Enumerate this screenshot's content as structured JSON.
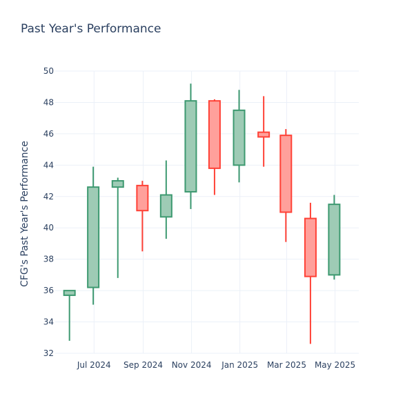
{
  "chart_data": {
    "type": "candlestick",
    "title": "Past Year's Performance",
    "xlabel": "",
    "ylabel": "CFG's Past Year's Performance",
    "ylim": [
      32,
      50
    ],
    "yticks": [
      32,
      34,
      36,
      38,
      40,
      42,
      44,
      46,
      48,
      50
    ],
    "xrange": [
      "2024-05-13",
      "2025-05-31"
    ],
    "xticks": [
      {
        "date": "2024-07-01",
        "label": "Jul 2024"
      },
      {
        "date": "2024-09-01",
        "label": "Sep 2024"
      },
      {
        "date": "2024-11-01",
        "label": "Nov 2024"
      },
      {
        "date": "2025-01-01",
        "label": "Jan 2025"
      },
      {
        "date": "2025-03-01",
        "label": "Mar 2025"
      },
      {
        "date": "2025-05-01",
        "label": "May 2025"
      }
    ],
    "grid": true,
    "increasing_color": "#3d9970",
    "increasing_fill": "#9ecbb5",
    "decreasing_color": "#ff4136",
    "decreasing_fill": "#ffa09b",
    "candles": [
      {
        "date": "2024-05-31",
        "open": 35.7,
        "high": 36.0,
        "low": 32.8,
        "close": 36.0
      },
      {
        "date": "2024-06-30",
        "open": 36.2,
        "high": 43.9,
        "low": 35.1,
        "close": 42.6
      },
      {
        "date": "2024-07-31",
        "open": 42.6,
        "high": 43.2,
        "low": 36.8,
        "close": 43.0
      },
      {
        "date": "2024-08-31",
        "open": 42.7,
        "high": 43.0,
        "low": 38.5,
        "close": 41.1
      },
      {
        "date": "2024-09-30",
        "open": 40.7,
        "high": 44.3,
        "low": 39.3,
        "close": 42.1
      },
      {
        "date": "2024-10-31",
        "open": 42.3,
        "high": 49.2,
        "low": 41.2,
        "close": 48.1
      },
      {
        "date": "2024-11-30",
        "open": 48.1,
        "high": 48.2,
        "low": 42.1,
        "close": 43.8
      },
      {
        "date": "2024-12-31",
        "open": 44.0,
        "high": 48.8,
        "low": 42.9,
        "close": 47.5
      },
      {
        "date": "2025-01-31",
        "open": 46.1,
        "high": 48.4,
        "low": 43.9,
        "close": 45.8
      },
      {
        "date": "2025-02-28",
        "open": 45.9,
        "high": 46.3,
        "low": 39.1,
        "close": 41.0
      },
      {
        "date": "2025-03-31",
        "open": 40.6,
        "high": 41.6,
        "low": 32.6,
        "close": 36.9
      },
      {
        "date": "2025-04-30",
        "open": 37.0,
        "high": 42.1,
        "low": 36.7,
        "close": 41.5
      }
    ]
  }
}
